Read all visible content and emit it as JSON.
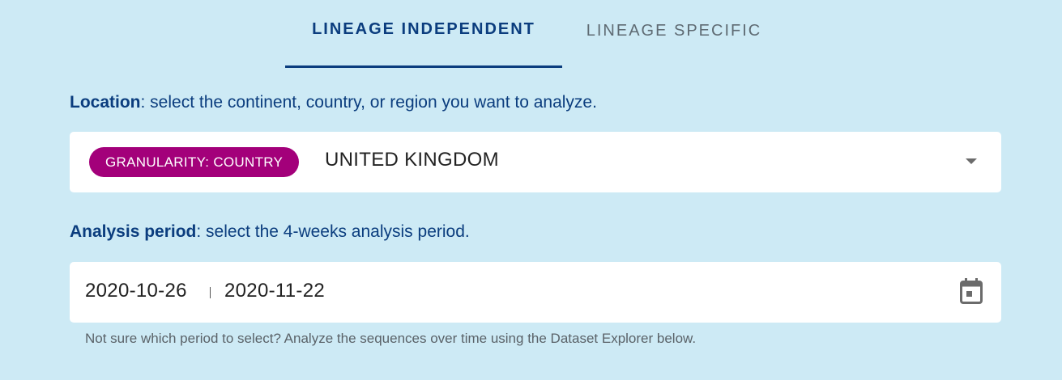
{
  "tabs": {
    "lineage_independent": "LINEAGE INDEPENDENT",
    "lineage_specific": "LINEAGE SPECIFIC"
  },
  "location": {
    "label_bold": "Location",
    "label_rest": ": select the continent, country, or region you want to analyze.",
    "granularity_chip": "GRANULARITY: COUNTRY",
    "value": "UNITED KINGDOM",
    "dropdown_icon": "chevron-down-icon"
  },
  "period": {
    "label_bold": "Analysis period",
    "label_rest": ": select the 4-weeks analysis period.",
    "start_date": "2020-10-26",
    "end_date": "2020-11-22",
    "calendar_icon": "calendar-icon",
    "hint": "Not sure which period to select? Analyze the sequences over time using the Dataset Explorer below."
  },
  "colors": {
    "background": "#cdeaf5",
    "primary": "#0b3d7e",
    "chip": "#a3007a"
  }
}
